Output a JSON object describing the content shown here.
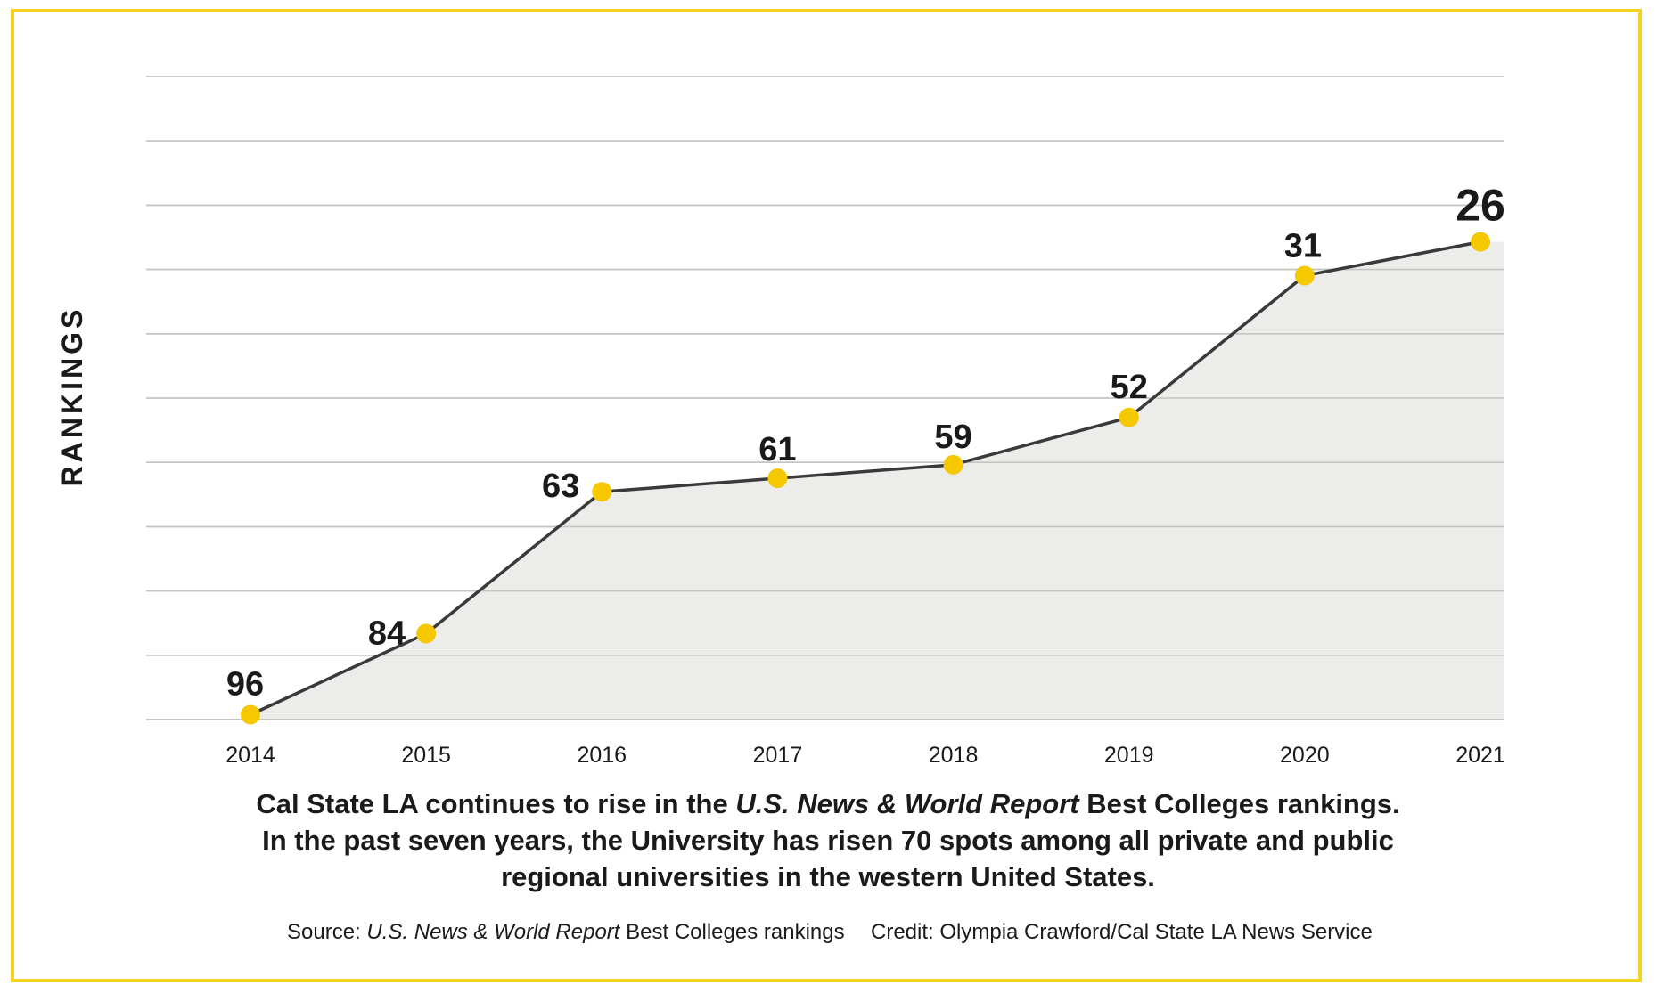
{
  "colors": {
    "frame": "#f5d21f",
    "marker": "#f5c800",
    "line": "#3a3a3a",
    "area": "#ececea",
    "grid": "#c4c4c0",
    "text": "#1a1a1a"
  },
  "chart_data": {
    "type": "area",
    "title": "",
    "xlabel": "",
    "ylabel": "RANKINGS",
    "categories": [
      "2014",
      "2015",
      "2016",
      "2017",
      "2018",
      "2019",
      "2020",
      "2021"
    ],
    "series": [
      {
        "name": "U.S. News & World Report Best Colleges ranking",
        "values": [
          96,
          84,
          63,
          61,
          59,
          52,
          31,
          26
        ]
      }
    ],
    "data_labels": [
      "96",
      "84",
      "63",
      "61",
      "59",
      "52",
      "31",
      "26"
    ],
    "ylim": [
      100,
      0
    ],
    "y_inverted": true,
    "grid": true
  },
  "caption": {
    "line1_pre": "Cal State LA continues to rise in the ",
    "line1_italic": "U.S. News & World Report",
    "line1_post": " Best Colleges rankings.",
    "line2": "In the past seven years, the University has risen 70 spots among all private and public",
    "line3": "regional universities in the western United States."
  },
  "source": {
    "prefix": "Source: ",
    "italic": "U.S. News & World Report",
    "suffix": " Best Colleges rankings"
  },
  "credit": "Credit: Olympia Crawford/Cal State LA News Service"
}
